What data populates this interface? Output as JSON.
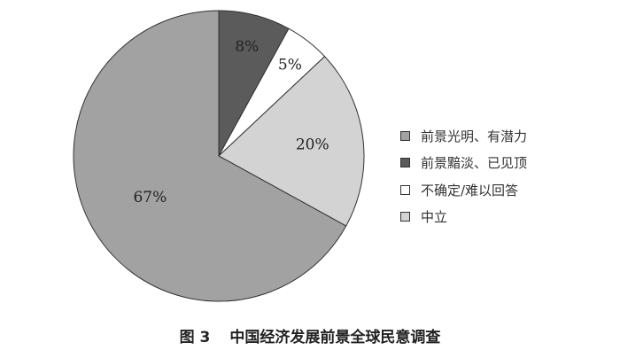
{
  "chart_data": {
    "type": "pie",
    "title": "图 3　中国经济发展前景全球民意调查",
    "title_parts": {
      "figure": "图 3",
      "text": "中国经济发展前景全球民意调查"
    },
    "start": "top",
    "direction": "clockwise",
    "slices": [
      {
        "name": "前景黯淡、已见顶",
        "value": 8,
        "label": "8%",
        "color": "#5b5b5b"
      },
      {
        "name": "不确定/难以回答",
        "value": 5,
        "label": "5%",
        "color": "#ffffff"
      },
      {
        "name": "中立",
        "value": 20,
        "label": "20%",
        "color": "#d3d3d3"
      },
      {
        "name": "前景光明、有潜力",
        "value": 67,
        "label": "67%",
        "color": "#a2a2a2"
      }
    ],
    "legend": [
      {
        "name": "前景光明、有潜力",
        "color": "#a2a2a2"
      },
      {
        "name": "前景黯淡、已见顶",
        "color": "#5b5b5b"
      },
      {
        "name": "不确定/难以回答",
        "color": "#ffffff"
      },
      {
        "name": "中立",
        "color": "#d3d3d3"
      }
    ],
    "legend_position": "right"
  }
}
